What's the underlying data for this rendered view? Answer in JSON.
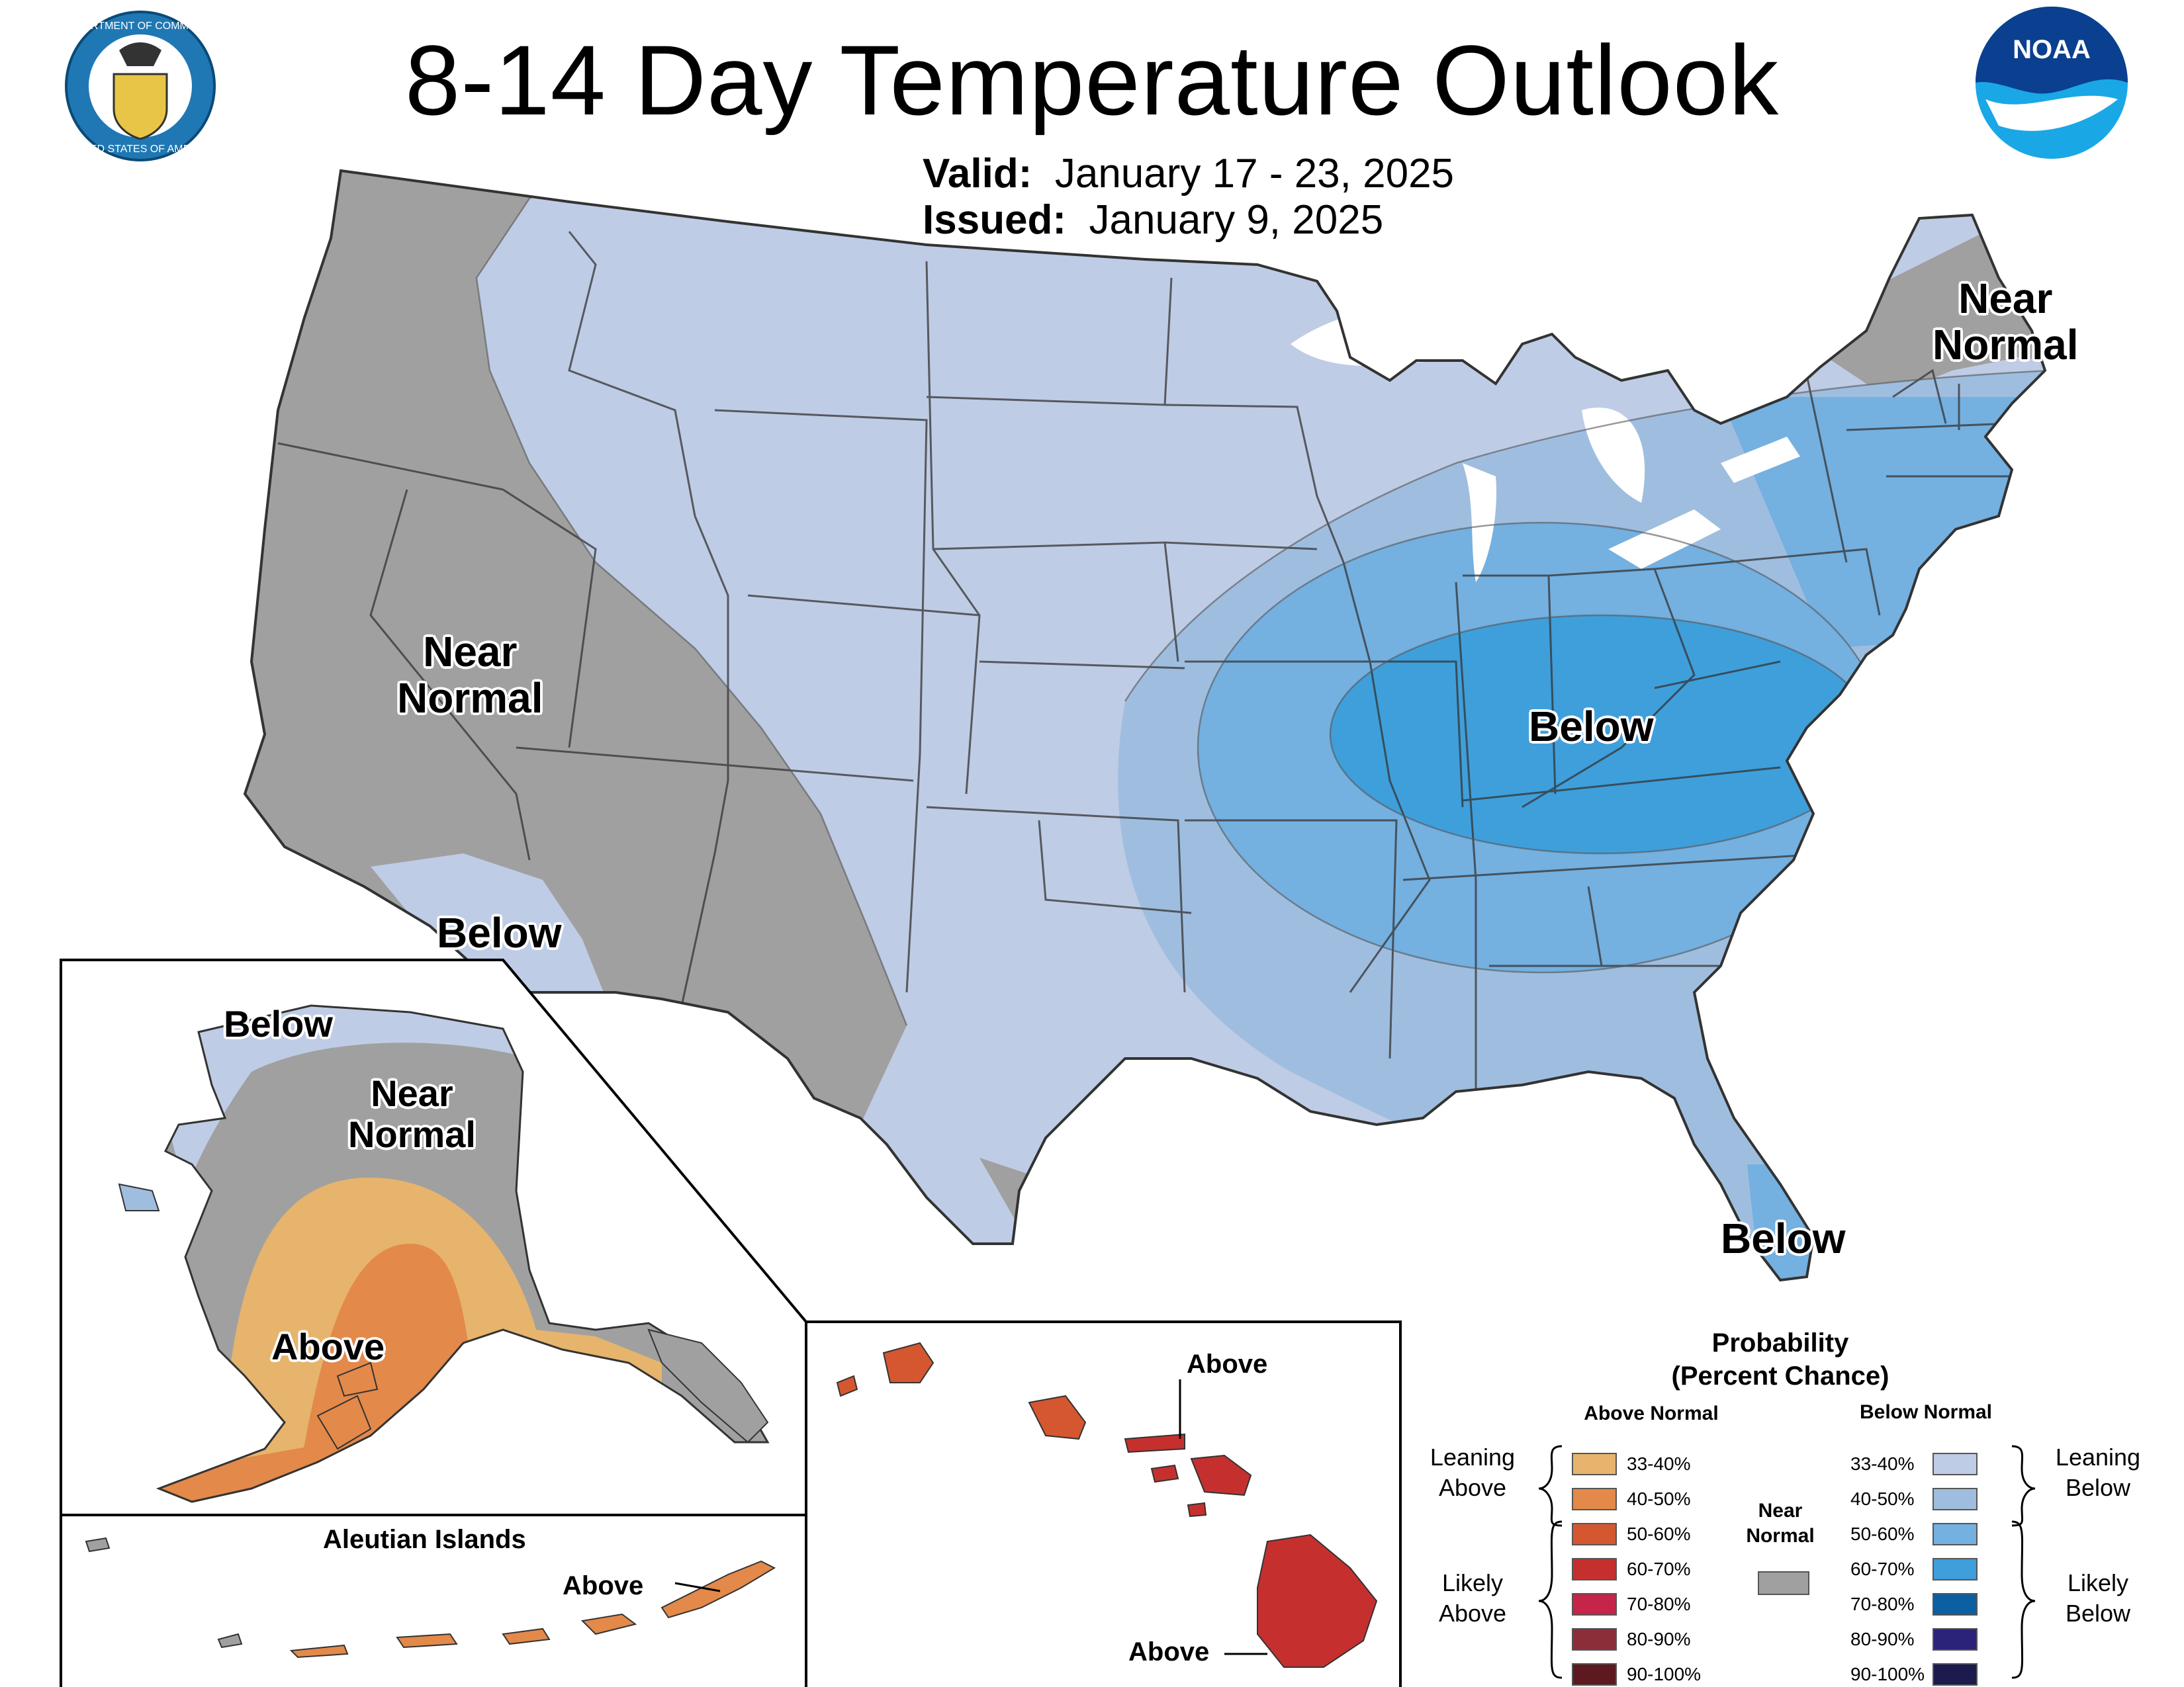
{
  "header": {
    "title": "8-14 Day Temperature Outlook",
    "valid_label": "Valid:",
    "valid_value": "January 17 - 23, 2025",
    "issued_label": "Issued:",
    "issued_value": "January 9, 2025"
  },
  "logos": {
    "commerce": {
      "icon": "department-of-commerce-seal",
      "text": "DEPARTMENT OF COMMERCE · UNITED STATES OF AMERICA"
    },
    "noaa": {
      "icon": "noaa-logo",
      "text": "NOAA"
    }
  },
  "map_labels": {
    "conus_near_normal_west": "Near\nNormal",
    "conus_below_east": "Below",
    "conus_below_socal": "Below",
    "conus_near_normal_maine": "Near\nNormal",
    "conus_below_florida": "Below",
    "alaska_below": "Below",
    "alaska_near_normal": "Near\nNormal",
    "alaska_above": "Above",
    "aleutian_title": "Aleutian Islands",
    "aleutian_above": "Above",
    "hawaii_above_north": "Above",
    "hawaii_above_south": "Above"
  },
  "legend": {
    "title": "Probability\n(Percent Chance)",
    "above_header": "Above Normal",
    "below_header": "Below Normal",
    "near_normal_label": "Near\nNormal",
    "leaning_above": "Leaning\nAbove",
    "likely_above": "Likely\nAbove",
    "leaning_below": "Leaning\nBelow",
    "likely_below": "Likely\nBelow",
    "above": [
      {
        "range": "33-40%",
        "color": "#E6B46C"
      },
      {
        "range": "40-50%",
        "color": "#E3894A"
      },
      {
        "range": "50-60%",
        "color": "#D5572F"
      },
      {
        "range": "60-70%",
        "color": "#C5302E"
      },
      {
        "range": "70-80%",
        "color": "#C42548"
      },
      {
        "range": "80-90%",
        "color": "#8C2E3A"
      },
      {
        "range": "90-100%",
        "color": "#5C1A20"
      }
    ],
    "below": [
      {
        "range": "33-40%",
        "color": "#BFCCE5"
      },
      {
        "range": "40-50%",
        "color": "#9FBEDF"
      },
      {
        "range": "50-60%",
        "color": "#74B0E0"
      },
      {
        "range": "60-70%",
        "color": "#3F9FDB"
      },
      {
        "range": "70-80%",
        "color": "#0C5FA0"
      },
      {
        "range": "80-90%",
        "color": "#2A2379"
      },
      {
        "range": "90-100%",
        "color": "#1C1B4E"
      }
    ],
    "near_normal_color": "#A0A0A0"
  },
  "colors": {
    "near_normal": "#A0A0A0",
    "below_33_40": "#BFCCE5",
    "below_40_50": "#9FBEDF",
    "below_50_60": "#74B0E0",
    "below_60_70": "#3F9FDB",
    "above_33_40": "#E6B46C",
    "above_40_50": "#E3894A",
    "above_50_60": "#D5572F",
    "above_60_70": "#C5302E"
  }
}
